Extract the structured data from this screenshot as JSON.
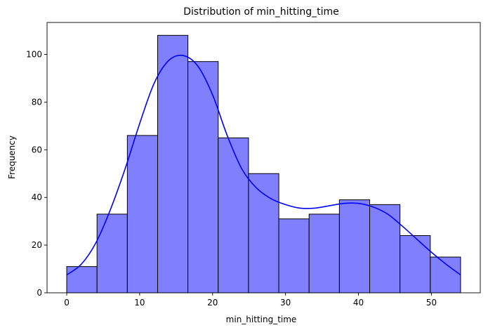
{
  "chart_data": {
    "type": "bar",
    "title": "Distribution of min_hitting_time",
    "xlabel": "min_hitting_time",
    "ylabel": "Frequency",
    "xlim": [
      -2.7,
      56.7
    ],
    "ylim": [
      0,
      113.4
    ],
    "xticks": [
      0,
      10,
      20,
      30,
      40,
      50
    ],
    "yticks": [
      0,
      20,
      40,
      60,
      80,
      100
    ],
    "bin_edges": [
      0,
      4.154,
      8.308,
      12.462,
      16.615,
      20.769,
      24.923,
      29.077,
      33.231,
      37.385,
      41.538,
      45.692,
      49.846,
      54
    ],
    "counts": [
      11,
      33,
      66,
      108,
      97,
      65,
      50,
      31,
      33,
      39,
      37,
      24,
      15
    ],
    "kde": {
      "x": [
        0,
        2,
        4,
        6,
        8,
        10,
        12,
        14,
        16,
        18,
        20,
        22,
        24,
        26,
        28,
        30,
        32,
        34,
        36,
        38,
        40,
        42,
        44,
        46,
        48,
        50,
        52,
        54
      ],
      "y": [
        7.5,
        12,
        21,
        35,
        52,
        71,
        88,
        97.5,
        99.5,
        95,
        83,
        66,
        52,
        44,
        39.5,
        37,
        35.5,
        35.5,
        36.5,
        37.5,
        37.5,
        36,
        33,
        28,
        22.5,
        17,
        12,
        7.5
      ]
    },
    "bar_color": "#8080ff",
    "bar_edge_color": "#000000",
    "kde_color": "#0000ff",
    "grid": false,
    "legend": false
  }
}
